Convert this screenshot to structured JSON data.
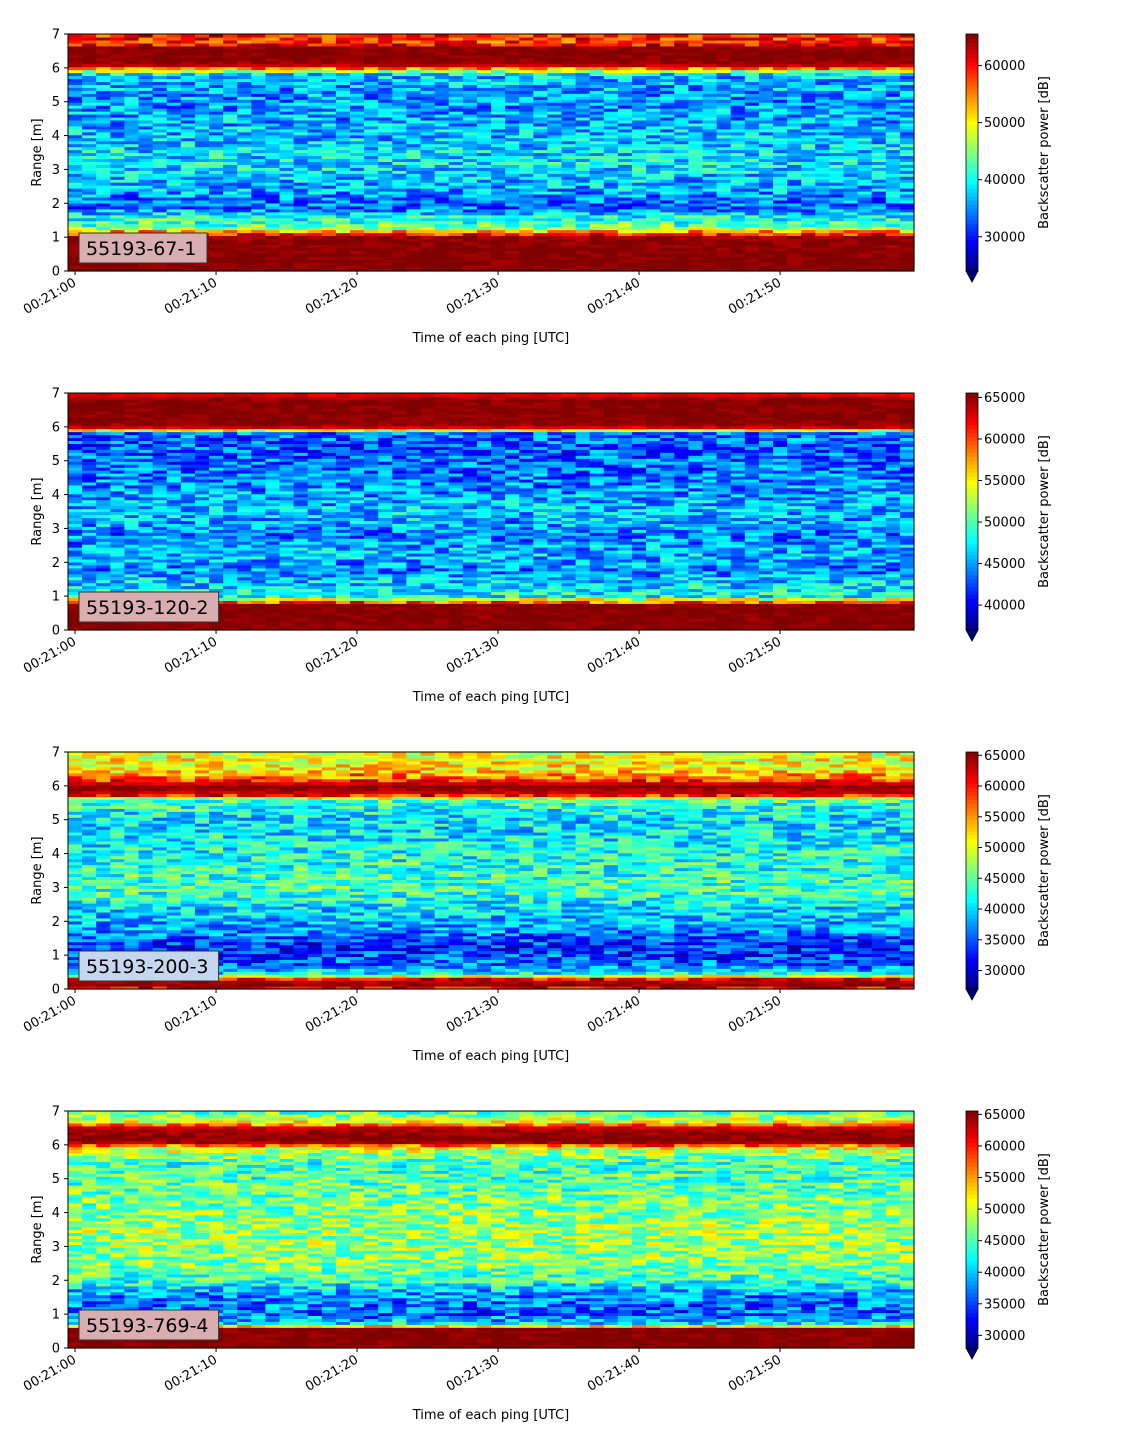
{
  "chart_data": [
    {
      "type": "heatmap",
      "title": "",
      "label": "55193-67-1",
      "label_bg": "#d8aeb0",
      "xlabel": "Time of each ping [UTC]",
      "ylabel": "Range [m]",
      "xticks": [
        "00:21:00",
        "00:21:10",
        "00:21:20",
        "00:21:30",
        "00:21:40",
        "00:21:50"
      ],
      "yticks": [
        0,
        1,
        2,
        3,
        4,
        5,
        6,
        7
      ],
      "xlim_seconds": [
        -0.5,
        59.5
      ],
      "ylim": [
        0,
        7
      ],
      "colorbar": {
        "label": "Backscatter power [dB]",
        "range": [
          24000,
          65535
        ],
        "ticks": [
          30000,
          40000,
          50000,
          60000
        ],
        "extend": "min",
        "cmap": "jet"
      },
      "profile": [
        {
          "range": 0.2,
          "value": 65535
        },
        {
          "range": 0.3,
          "value": 65535
        },
        {
          "range": 1.0,
          "value": 65000
        },
        {
          "range": 1.15,
          "value": 56000
        },
        {
          "range": 1.3,
          "value": 44000
        },
        {
          "range": 1.6,
          "value": 40000
        },
        {
          "range": 1.9,
          "value": 33000
        },
        {
          "range": 2.4,
          "value": 36000
        },
        {
          "range": 3.2,
          "value": 39000
        },
        {
          "range": 4.0,
          "value": 37000
        },
        {
          "range": 5.0,
          "value": 35000
        },
        {
          "range": 5.8,
          "value": 37000
        },
        {
          "range": 5.95,
          "value": 50000
        },
        {
          "range": 6.05,
          "value": 62000
        },
        {
          "range": 6.2,
          "value": 65535
        },
        {
          "range": 6.6,
          "value": 65535
        },
        {
          "range": 6.75,
          "value": 58000
        },
        {
          "range": 7.0,
          "value": 60000
        }
      ]
    },
    {
      "type": "heatmap",
      "title": "",
      "label": "55193-120-2",
      "label_bg": "#d8aeb0",
      "xlabel": "Time of each ping [UTC]",
      "ylabel": "Range [m]",
      "xticks": [
        "00:21:00",
        "00:21:10",
        "00:21:20",
        "00:21:30",
        "00:21:40",
        "00:21:50"
      ],
      "yticks": [
        0,
        1,
        2,
        3,
        4,
        5,
        6,
        7
      ],
      "xlim_seconds": [
        -0.5,
        59.5
      ],
      "ylim": [
        0,
        7
      ],
      "colorbar": {
        "label": "Backscatter power [dB]",
        "range": [
          37000,
          65535
        ],
        "ticks": [
          40000,
          45000,
          50000,
          55000,
          60000,
          65000
        ],
        "extend": "min",
        "cmap": "jet"
      },
      "profile": [
        {
          "range": 0.2,
          "value": 65535
        },
        {
          "range": 0.75,
          "value": 65535
        },
        {
          "range": 0.85,
          "value": 58000
        },
        {
          "range": 1.0,
          "value": 48000
        },
        {
          "range": 1.5,
          "value": 46000
        },
        {
          "range": 1.8,
          "value": 44000
        },
        {
          "range": 2.2,
          "value": 46000
        },
        {
          "range": 2.8,
          "value": 44000
        },
        {
          "range": 3.5,
          "value": 46000
        },
        {
          "range": 4.5,
          "value": 44000
        },
        {
          "range": 5.5,
          "value": 43000
        },
        {
          "range": 5.85,
          "value": 44000
        },
        {
          "range": 5.95,
          "value": 62000
        },
        {
          "range": 6.1,
          "value": 65535
        },
        {
          "range": 6.8,
          "value": 65535
        },
        {
          "range": 7.0,
          "value": 62000
        }
      ]
    },
    {
      "type": "heatmap",
      "title": "",
      "label": "55193-200-3",
      "label_bg": "#c6d6ee",
      "xlabel": "Time of each ping [UTC]",
      "ylabel": "Range [m]",
      "xticks": [
        "00:21:00",
        "00:21:10",
        "00:21:20",
        "00:21:30",
        "00:21:40",
        "00:21:50"
      ],
      "yticks": [
        0,
        1,
        2,
        3,
        4,
        5,
        6,
        7
      ],
      "xlim_seconds": [
        -0.5,
        59.5
      ],
      "ylim": [
        0,
        7
      ],
      "colorbar": {
        "label": "Backscatter power [dB]",
        "range": [
          27000,
          65535
        ],
        "ticks": [
          30000,
          35000,
          40000,
          45000,
          50000,
          55000,
          60000,
          65000
        ],
        "extend": "min",
        "cmap": "jet"
      },
      "profile": [
        {
          "range": 0.0,
          "value": 60000
        },
        {
          "range": 0.15,
          "value": 65535
        },
        {
          "range": 0.3,
          "value": 62000
        },
        {
          "range": 0.45,
          "value": 42000
        },
        {
          "range": 0.7,
          "value": 36000
        },
        {
          "range": 1.3,
          "value": 33000
        },
        {
          "range": 1.8,
          "value": 38000
        },
        {
          "range": 2.3,
          "value": 40000
        },
        {
          "range": 3.0,
          "value": 44000
        },
        {
          "range": 4.0,
          "value": 42000
        },
        {
          "range": 5.0,
          "value": 40000
        },
        {
          "range": 5.6,
          "value": 44000
        },
        {
          "range": 5.75,
          "value": 62000
        },
        {
          "range": 6.0,
          "value": 65535
        },
        {
          "range": 6.2,
          "value": 58000
        },
        {
          "range": 6.5,
          "value": 52000
        },
        {
          "range": 7.0,
          "value": 50000
        }
      ]
    },
    {
      "type": "heatmap",
      "title": "",
      "label": "55193-769-4",
      "label_bg": "#d8aeb0",
      "xlabel": "Time of each ping [UTC]",
      "ylabel": "Range [m]",
      "xticks": [
        "00:21:00",
        "00:21:10",
        "00:21:20",
        "00:21:30",
        "00:21:40",
        "00:21:50"
      ],
      "yticks": [
        0,
        1,
        2,
        3,
        4,
        5,
        6,
        7
      ],
      "xlim_seconds": [
        -0.5,
        59.5
      ],
      "ylim": [
        0,
        7
      ],
      "colorbar": {
        "label": "Backscatter power [dB]",
        "range": [
          28000,
          65535
        ],
        "ticks": [
          30000,
          35000,
          40000,
          45000,
          50000,
          55000,
          60000,
          65000
        ],
        "extend": "min",
        "cmap": "jet"
      },
      "profile": [
        {
          "range": 0.2,
          "value": 65535
        },
        {
          "range": 0.6,
          "value": 65535
        },
        {
          "range": 0.7,
          "value": 42000
        },
        {
          "range": 1.0,
          "value": 36000
        },
        {
          "range": 1.6,
          "value": 38000
        },
        {
          "range": 2.0,
          "value": 44000
        },
        {
          "range": 2.5,
          "value": 47000
        },
        {
          "range": 3.5,
          "value": 48000
        },
        {
          "range": 4.5,
          "value": 46000
        },
        {
          "range": 5.5,
          "value": 44000
        },
        {
          "range": 5.9,
          "value": 50000
        },
        {
          "range": 6.1,
          "value": 65535
        },
        {
          "range": 6.5,
          "value": 64000
        },
        {
          "range": 6.7,
          "value": 50000
        },
        {
          "range": 7.0,
          "value": 45000
        }
      ]
    }
  ]
}
